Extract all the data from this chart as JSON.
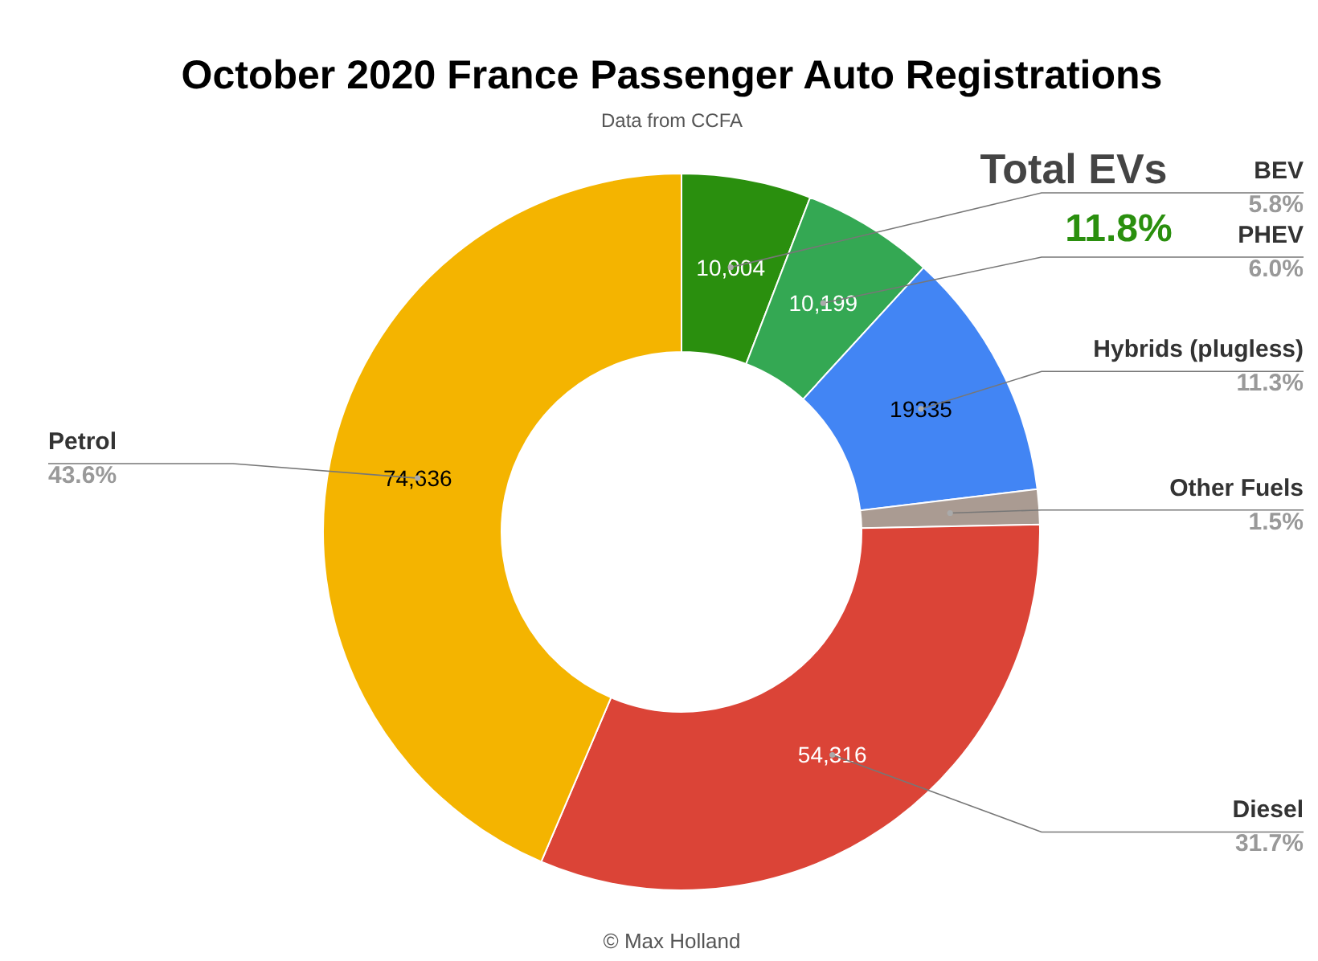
{
  "chart_data": {
    "type": "donut",
    "title": "October 2020 France Passenger Auto Registrations",
    "subtitle": "Data from CCFA",
    "categories": [
      "BEV",
      "PHEV",
      "Hybrids (plugless)",
      "Other Fuels",
      "Diesel",
      "Petrol"
    ],
    "values": [
      10004,
      10199,
      19335,
      2693,
      54316,
      74636
    ],
    "value_labels": [
      "10,004",
      "10,199",
      "19335",
      null,
      "54,316",
      "74,636"
    ],
    "colors": [
      "#2a8f0e",
      "#34a853",
      "#4285f4",
      "#aa9b92",
      "#db4437",
      "#f4b400"
    ],
    "annotations": [
      {
        "text": "5.8%",
        "x": "BEV"
      },
      {
        "text": "6.0%",
        "x": "PHEV"
      },
      {
        "text": "11.3%",
        "x": "Hybrids (plugless)"
      },
      {
        "text": "1.5%",
        "x": "Other Fuels"
      },
      {
        "text": "31.7%",
        "x": "Diesel"
      },
      {
        "text": "43.6%",
        "x": "Petrol"
      },
      "Total EVs",
      "11.8%",
      "© Max Holland"
    ]
  }
}
